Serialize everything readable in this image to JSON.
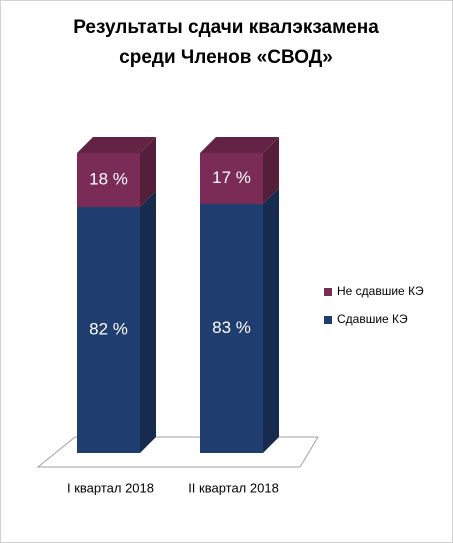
{
  "chart_data": {
    "type": "stacked-bar-3d",
    "title": [
      "Результаты сдачи квалэкзамена",
      "среди Членов «СВОД»"
    ],
    "categories": [
      "I квартал 2018",
      "II квартал 2018"
    ],
    "series": [
      {
        "name": "Сдавшие КЭ",
        "color": "#1f3d6e",
        "values": [
          82,
          83
        ],
        "value_labels": [
          "82 %",
          "83 %"
        ]
      },
      {
        "name": "Не сдавшие КЭ",
        "color": "#7a2c56",
        "values": [
          18,
          17
        ],
        "value_labels": [
          "18 %",
          "17 %"
        ]
      }
    ]
  }
}
